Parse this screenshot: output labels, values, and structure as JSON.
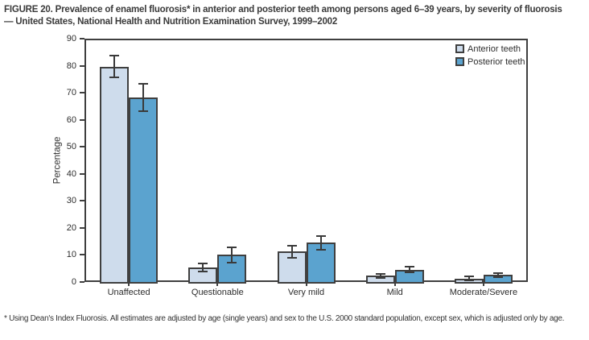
{
  "figure": {
    "title": "FIGURE 20. Prevalence of enamel fluorosis* in anterior and posterior teeth among persons aged 6–39 years, by severity of fluorosis — United States, National Health and Nutrition Examination Survey, 1999–2002",
    "footnote_marker": "*",
    "footnote": "Using Dean's Index Fluorosis. All estimates are adjusted by age (single years) and sex to the U.S. 2000 standard population, except sex, which is adjusted only by age."
  },
  "colors": {
    "anterior_fill": "#cedcec",
    "posterior_fill": "#5ba3cf",
    "outline": "#3f3f3f",
    "error_bar": "#3a3a3a",
    "text": "#2d2d2d"
  },
  "chart_data": {
    "type": "bar",
    "title": "",
    "xlabel": "",
    "ylabel": "Percentage",
    "ylim": [
      0,
      90
    ],
    "ytick_step": 10,
    "grid": false,
    "legend_position": "top-right",
    "categories": [
      "Unaffected",
      "Questionable",
      "Very mild",
      "Mild",
      "Moderate/Severe"
    ],
    "series": [
      {
        "name": "Anterior teeth",
        "color_key": "anterior_fill",
        "values": [
          79.6,
          5.5,
          11.2,
          2.3,
          1.3
        ],
        "ci_low": [
          75.6,
          4.0,
          9.0,
          1.6,
          0.5
        ],
        "ci_high": [
          83.6,
          7.0,
          13.4,
          3.0,
          2.1
        ]
      },
      {
        "name": "Posterior teeth",
        "color_key": "posterior_fill",
        "values": [
          68.1,
          10.1,
          14.5,
          4.6,
          2.6
        ],
        "ci_low": [
          63.2,
          7.3,
          12.0,
          3.5,
          1.8
        ],
        "ci_high": [
          73.2,
          12.9,
          17.0,
          5.7,
          3.4
        ]
      }
    ]
  }
}
